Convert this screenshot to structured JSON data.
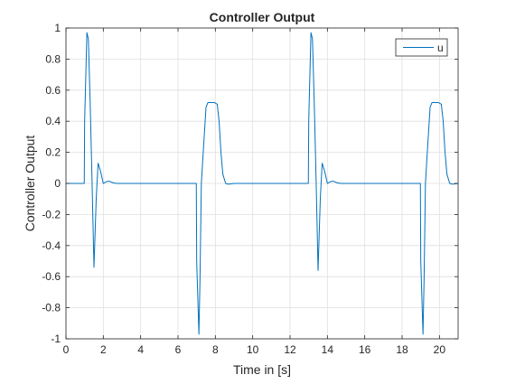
{
  "chart_data": {
    "type": "line",
    "title": "Controller Output",
    "xlabel": "Time in [s]",
    "ylabel": "Controller Output",
    "xlim": [
      0,
      21
    ],
    "ylim": [
      -1,
      1
    ],
    "grid": true,
    "legend_position": "top-right",
    "xticks": [
      0,
      2,
      4,
      6,
      8,
      10,
      12,
      14,
      16,
      18,
      20
    ],
    "xtick_labels": [
      "0",
      "2",
      "4",
      "6",
      "8",
      "10",
      "12",
      "14",
      "16",
      "18",
      "20"
    ],
    "yticks": [
      1,
      0.8,
      0.6,
      0.4,
      0.2,
      0,
      -0.2,
      -0.4,
      -0.6,
      -0.8,
      -1
    ],
    "ytick_labels": [
      "1",
      "0.8",
      "0.6",
      "0.4",
      "0.2",
      "0",
      "-0.2",
      "-0.4",
      "-0.6",
      "-0.8",
      "-1"
    ],
    "series": [
      {
        "name": "u",
        "color": "#0072BD",
        "x": [
          0,
          0.98,
          1.0,
          1.12,
          1.2,
          1.3,
          1.4,
          1.5,
          1.62,
          1.72,
          1.85,
          2.0,
          2.15,
          2.3,
          2.5,
          2.7,
          3.0,
          4.0,
          5.0,
          6.0,
          6.98,
          7.0,
          7.12,
          7.18,
          7.25,
          7.35,
          7.5,
          7.6,
          7.72,
          7.82,
          7.95,
          8.1,
          8.2,
          8.3,
          8.4,
          8.55,
          8.7,
          9.0,
          10.0,
          11.0,
          12.0,
          12.98,
          13.0,
          13.12,
          13.2,
          13.3,
          13.4,
          13.5,
          13.62,
          13.72,
          13.85,
          14.0,
          14.15,
          14.3,
          14.5,
          14.7,
          15.0,
          16.0,
          17.0,
          18.0,
          18.98,
          19.0,
          19.12,
          19.18,
          19.25,
          19.35,
          19.5,
          19.6,
          19.72,
          19.82,
          19.95,
          20.1,
          20.2,
          20.3,
          20.4,
          20.55,
          20.7,
          21.0
        ],
        "y": [
          0,
          0,
          0.4,
          0.97,
          0.93,
          0.5,
          0.0,
          -0.54,
          -0.1,
          0.13,
          0.08,
          0.0,
          0.01,
          0.015,
          0.005,
          0.0,
          0.0,
          0.0,
          0.0,
          0.0,
          0.0,
          -0.5,
          -0.97,
          -0.6,
          0.0,
          0.2,
          0.49,
          0.52,
          0.52,
          0.52,
          0.52,
          0.51,
          0.4,
          0.2,
          0.06,
          0.0,
          -0.005,
          0.0,
          0.0,
          0.0,
          0.0,
          0.0,
          0.4,
          0.97,
          0.93,
          0.5,
          0.0,
          -0.56,
          -0.1,
          0.13,
          0.08,
          0.0,
          0.01,
          0.015,
          0.005,
          0.0,
          0.0,
          0.0,
          0.0,
          0.0,
          0.0,
          -0.5,
          -0.97,
          -0.6,
          0.0,
          0.2,
          0.49,
          0.52,
          0.52,
          0.52,
          0.52,
          0.51,
          0.4,
          0.2,
          0.06,
          0.0,
          -0.005,
          0.0
        ]
      }
    ]
  }
}
